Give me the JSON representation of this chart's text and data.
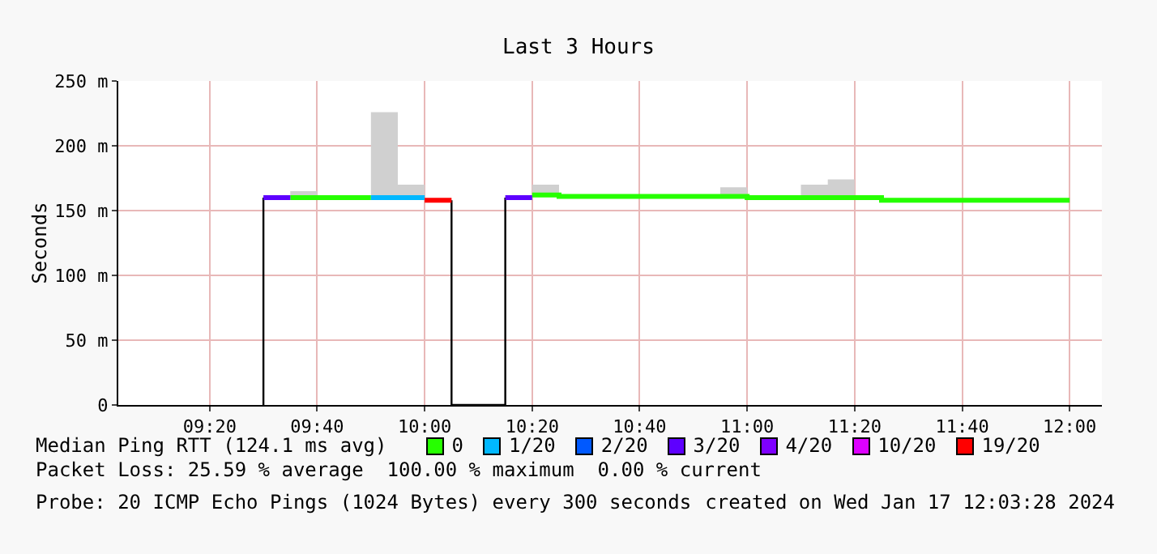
{
  "chart_data": {
    "type": "step",
    "title": "Last 3 Hours",
    "ylabel": "Seconds",
    "legend_title": "Median Ping RTT (124.1 ms avg)",
    "legend": "bottom",
    "grid": true,
    "xlim": [
      "2024-01-17T09:03",
      "2024-01-17T12:06"
    ],
    "xticks": [
      {
        "value": "2024-01-17T09:20",
        "label": "09:20"
      },
      {
        "value": "2024-01-17T09:40",
        "label": "09:40"
      },
      {
        "value": "2024-01-17T10:00",
        "label": "10:00"
      },
      {
        "value": "2024-01-17T10:20",
        "label": "10:20"
      },
      {
        "value": "2024-01-17T10:40",
        "label": "10:40"
      },
      {
        "value": "2024-01-17T11:00",
        "label": "11:00"
      },
      {
        "value": "2024-01-17T11:20",
        "label": "11:20"
      },
      {
        "value": "2024-01-17T11:40",
        "label": "11:40"
      },
      {
        "value": "2024-01-17T12:00",
        "label": "12:00"
      }
    ],
    "ylim": [
      0,
      250
    ],
    "yticks": [
      0,
      {
        "value": 50,
        "label": "50 m"
      },
      {
        "value": 100,
        "label": "100 m"
      },
      {
        "value": 150,
        "label": "150 m"
      },
      {
        "value": 200,
        "label": "200 m"
      },
      {
        "value": 250,
        "label": "250 m"
      }
    ],
    "series": [
      {
        "type": "area",
        "color": "#d0d0d0",
        "x": [
          "2024-01-17T09:35",
          "2024-01-17T09:40",
          null,
          "2024-01-17T09:50",
          "2024-01-17T09:55",
          "2024-01-17T10:00",
          null,
          "2024-01-17T10:20",
          "2024-01-17T10:25",
          null,
          "2024-01-17T10:55",
          "2024-01-17T11:00",
          null,
          "2024-01-17T11:10",
          "2024-01-17T11:15",
          "2024-01-17T11:20"
        ],
        "values": [
          165,
          165,
          null,
          226,
          170,
          170,
          null,
          170,
          170,
          null,
          168,
          168,
          null,
          170,
          174,
          174
        ]
      },
      {
        "type": "line",
        "color": "#000000",
        "x": [
          "2024-01-17T09:30",
          "2024-01-17T09:30",
          null,
          "2024-01-17T10:05",
          "2024-01-17T10:05",
          "2024-01-17T10:15",
          "2024-01-17T10:15"
        ],
        "values": [
          0,
          160,
          null,
          158,
          0,
          0,
          160
        ]
      },
      {
        "name": "0",
        "color": "#26ff00",
        "x": [
          "2024-01-17T09:35",
          "2024-01-17T09:50",
          null,
          "2024-01-17T10:20",
          "2024-01-17T10:25",
          "2024-01-17T11:00",
          "2024-01-17T11:25",
          "2024-01-17T12:00"
        ],
        "values": [
          160,
          160,
          null,
          162,
          161,
          160,
          158,
          158
        ]
      },
      {
        "name": "1/20",
        "color": "#00b8ff",
        "x": [
          "2024-01-17T09:50",
          "2024-01-17T10:00"
        ],
        "values": [
          160,
          160
        ]
      },
      {
        "name": "2/20",
        "color": "#0059ff"
      },
      {
        "name": "3/20",
        "color": "#5e00ff",
        "x": [
          "2024-01-17T09:30",
          "2024-01-17T09:35",
          null,
          "2024-01-17T10:15",
          "2024-01-17T10:20"
        ],
        "values": [
          160,
          160,
          null,
          160,
          160
        ]
      },
      {
        "name": "4/20",
        "color": "#7e00ff"
      },
      {
        "name": "10/20",
        "color": "#dd00ff"
      },
      {
        "name": "19/20",
        "color": "#ff0000",
        "x": [
          "2024-01-17T10:00",
          "2024-01-17T10:05"
        ],
        "values": [
          158,
          158
        ]
      }
    ],
    "annotations": [
      "Packet Loss: 25.59 % average  100.00 % maximum  0.00 % current",
      "Probe: 20 ICMP Echo Pings (1024 Bytes) every 300 seconds",
      "created on Wed Jan 17 12:03:28 2024"
    ]
  }
}
